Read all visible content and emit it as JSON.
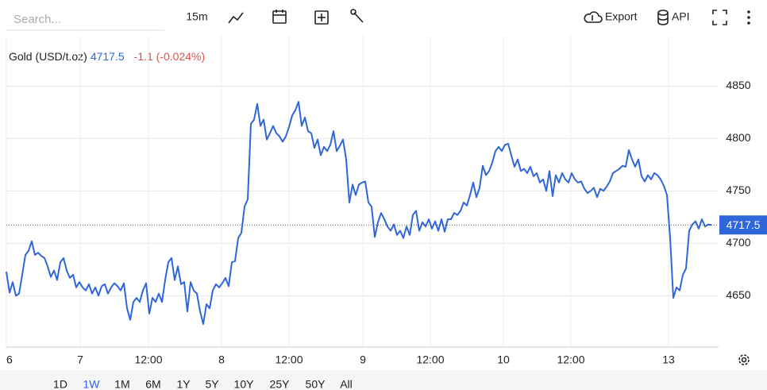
{
  "toolbar": {
    "search_placeholder": "Search...",
    "interval": "15m",
    "export": "Export",
    "api": "API"
  },
  "chart_data": {
    "type": "line",
    "series": [
      {
        "name": "Gold (USD/t.oz)",
        "color": "#2f66d9",
        "values": [
          4673,
          4653,
          4663,
          4650,
          4652,
          4670,
          4689,
          4693,
          4702,
          4689,
          4691,
          4688,
          4686,
          4678,
          4668,
          4674,
          4665,
          4682,
          4686,
          4674,
          4667,
          4670,
          4658,
          4663,
          4658,
          4655,
          4661,
          4652,
          4658,
          4650,
          4659,
          4661,
          4652,
          4658,
          4662,
          4659,
          4655,
          4662,
          4638,
          4627,
          4644,
          4648,
          4644,
          4655,
          4662,
          4633,
          4648,
          4644,
          4652,
          4644,
          4665,
          4682,
          4686,
          4665,
          4678,
          4661,
          4663,
          4635,
          4663,
          4655,
          4652,
          4635,
          4623,
          4642,
          4638,
          4655,
          4661,
          4658,
          4662,
          4667,
          4659,
          4682,
          4683,
          4705,
          4710,
          4735,
          4742,
          4814,
          4818,
          4833,
          4812,
          4818,
          4799,
          4805,
          4812,
          4805,
          4802,
          4797,
          4802,
          4811,
          4822,
          4827,
          4835,
          4812,
          4820,
          4807,
          4805,
          4791,
          4799,
          4784,
          4792,
          4788,
          4794,
          4807,
          4788,
          4793,
          4799,
          4780,
          4739,
          4756,
          4746,
          4756,
          4758,
          4759,
          4739,
          4735,
          4706,
          4720,
          4729,
          4723,
          4716,
          4712,
          4718,
          4708,
          4712,
          4705,
          4716,
          4708,
          4727,
          4731,
          4712,
          4720,
          4716,
          4723,
          4714,
          4721,
          4712,
          4723,
          4711,
          4723,
          4723,
          4729,
          4727,
          4731,
          4739,
          4736,
          4746,
          4758,
          4744,
          4753,
          4774,
          4765,
          4769,
          4777,
          4788,
          4792,
          4788,
          4794,
          4795,
          4784,
          4773,
          4780,
          4769,
          4771,
          4767,
          4773,
          4764,
          4767,
          4758,
          4761,
          4750,
          4769,
          4745,
          4765,
          4758,
          4767,
          4761,
          4758,
          4767,
          4761,
          4758,
          4759,
          4752,
          4748,
          4750,
          4753,
          4744,
          4752,
          4750,
          4754,
          4759,
          4767,
          4769,
          4771,
          4774,
          4773,
          4789,
          4780,
          4773,
          4780,
          4764,
          4759,
          4765,
          4761,
          4767,
          4765,
          4761,
          4755,
          4746,
          4705,
          4648,
          4658,
          4655,
          4670,
          4676,
          4712,
          4718,
          4721,
          4714,
          4723,
          4716,
          4718,
          4717.5
        ]
      }
    ],
    "x": [
      0,
      1,
      2,
      3,
      4,
      5,
      6,
      7,
      8,
      9,
      10,
      11,
      12,
      13,
      14,
      15,
      16,
      17,
      18,
      19,
      20,
      21,
      22,
      23,
      24,
      25,
      26,
      27,
      28,
      29,
      30,
      31,
      32,
      33,
      34,
      35,
      36,
      37,
      38,
      39,
      40,
      41,
      42,
      43,
      44,
      45,
      46,
      47,
      48,
      49,
      50,
      51,
      52,
      53,
      54,
      55,
      56,
      57,
      58,
      59,
      60,
      61,
      62,
      63,
      64,
      65,
      66,
      67,
      68,
      69,
      70,
      71,
      72,
      73,
      74,
      75,
      76,
      77,
      78,
      79,
      80,
      81,
      82,
      83,
      84,
      85,
      86,
      87,
      88,
      89,
      90,
      91,
      92,
      93,
      94,
      95,
      96,
      97,
      98,
      99,
      100,
      101,
      102,
      103,
      104,
      105,
      106,
      107,
      108,
      109,
      110,
      111,
      112,
      113,
      114,
      115,
      116,
      117,
      118,
      119,
      120,
      121,
      122,
      123,
      124,
      125,
      126,
      127,
      128,
      129,
      130,
      131,
      132,
      133,
      134,
      135,
      136,
      137,
      138,
      139,
      140,
      141,
      142,
      143,
      144,
      145,
      146,
      147,
      148,
      149,
      150,
      151,
      152,
      153,
      154,
      155,
      156,
      157,
      158,
      159,
      160,
      161,
      162,
      163,
      164,
      165,
      166,
      167,
      168,
      169,
      170,
      171,
      172,
      173,
      174,
      175,
      176,
      177,
      178,
      179,
      180,
      181,
      182,
      183,
      184,
      185,
      186,
      187,
      188,
      189,
      190,
      191,
      192,
      193,
      194,
      195,
      196,
      197,
      198,
      199,
      200,
      201,
      202,
      203,
      204,
      205,
      206,
      207,
      208,
      209,
      210,
      211,
      212,
      213,
      214,
      215,
      216,
      217,
      218,
      219,
      220,
      221,
      222
    ],
    "xlim": [
      0,
      224.25
    ],
    "xticks": [
      {
        "value": 0,
        "label": "6"
      },
      {
        "value": 23.25,
        "label": "7"
      },
      {
        "value": 44.75,
        "label": "12:00"
      },
      {
        "value": 67.75,
        "label": "8"
      },
      {
        "value": 89,
        "label": "12:00"
      },
      {
        "value": 112.25,
        "label": "9"
      },
      {
        "value": 133.5,
        "label": "12:00"
      },
      {
        "value": 156.5,
        "label": "10"
      },
      {
        "value": 177.75,
        "label": "12:00"
      },
      {
        "value": 208.5,
        "label": "13"
      }
    ],
    "ylim": [
      4601,
      4898
    ],
    "yticks": [
      4650,
      4700,
      4750,
      4800,
      4850
    ],
    "grid": true,
    "last_price": 4717.5,
    "last_price_color": "#2f66d9",
    "change": "-1.1 (-0.024%)",
    "change_color": "#d9534f"
  },
  "ranges": [
    "1D",
    "1W",
    "1M",
    "6M",
    "1Y",
    "5Y",
    "10Y",
    "25Y",
    "50Y",
    "All"
  ],
  "selected_range": "1W"
}
